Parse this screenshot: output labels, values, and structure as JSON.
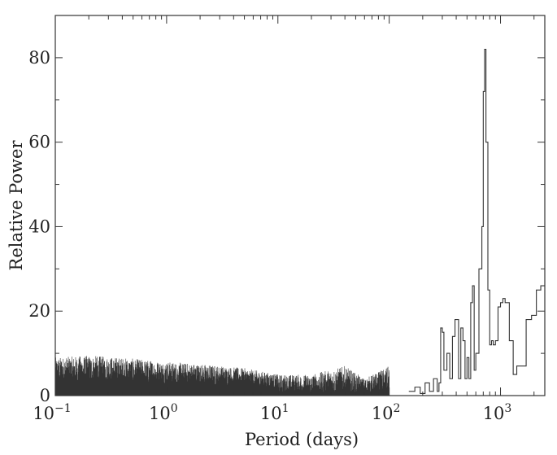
{
  "chart_data": {
    "type": "line",
    "xscale": "log",
    "xlim": [
      0.1,
      2500
    ],
    "ylim": [
      0,
      90
    ],
    "xlabel": "Period (days)",
    "ylabel": "Relative Power",
    "yticks": [
      0,
      20,
      40,
      60,
      80
    ],
    "xticks": [
      {
        "base": "10",
        "exp": "−1",
        "value": 0.1
      },
      {
        "base": "10",
        "exp": "0",
        "value": 1
      },
      {
        "base": "10",
        "exp": "1",
        "value": 10
      },
      {
        "base": "10",
        "exp": "2",
        "value": 100
      },
      {
        "base": "10",
        "exp": "3",
        "value": 1000
      }
    ],
    "line_color": "#333333",
    "noise_envelope": [
      {
        "period": 0.1,
        "max_power": 9
      },
      {
        "period": 0.2,
        "max_power": 9.5
      },
      {
        "period": 0.4,
        "max_power": 9
      },
      {
        "period": 1,
        "max_power": 8
      },
      {
        "period": 2,
        "max_power": 7.5
      },
      {
        "period": 5,
        "max_power": 6.5
      },
      {
        "period": 10,
        "max_power": 5
      },
      {
        "period": 20,
        "max_power": 5
      },
      {
        "period": 40,
        "max_power": 7
      },
      {
        "period": 60,
        "max_power": 4
      },
      {
        "period": 100,
        "max_power": 7
      }
    ],
    "series": [
      {
        "x": [
          150,
          170,
          190,
          210,
          230,
          250,
          270,
          280,
          290,
          300,
          310,
          330,
          350,
          370,
          390,
          420,
          440,
          460,
          480,
          500,
          520,
          540,
          560,
          580,
          600,
          640,
          680,
          700,
          720,
          740,
          770,
          800,
          830,
          860,
          900,
          950,
          1000,
          1050,
          1100,
          1200,
          1300,
          1400,
          1550,
          1700,
          1900,
          2100,
          2300,
          2500
        ],
        "y": [
          1,
          2,
          0.5,
          3,
          1,
          4,
          1,
          3,
          16,
          15,
          6,
          10,
          4,
          14,
          18,
          4,
          16,
          13,
          4,
          9,
          4,
          22,
          26,
          6,
          10,
          30,
          40,
          72,
          82,
          60,
          25,
          12,
          13,
          12,
          13,
          21,
          22,
          23,
          22,
          13,
          5,
          7,
          7,
          18,
          19,
          25,
          26,
          26
        ]
      }
    ]
  }
}
